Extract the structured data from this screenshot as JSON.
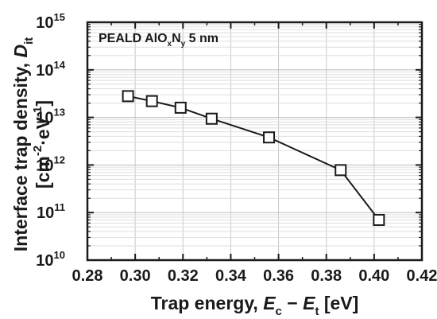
{
  "chart_data": {
    "type": "scatter",
    "annotation": {
      "parts": [
        {
          "t": "PEALD AlO",
          "s": "n"
        },
        {
          "t": "x",
          "s": "sub"
        },
        {
          "t": "N",
          "s": "n"
        },
        {
          "t": "y",
          "s": "sub"
        },
        {
          "t": " 5 nm",
          "s": "n"
        }
      ]
    },
    "xlabel": {
      "parts": [
        {
          "t": "Trap energy, ",
          "s": "n"
        },
        {
          "t": "E",
          "s": "i"
        },
        {
          "t": "c",
          "s": "sub"
        },
        {
          "t": " − ",
          "s": "n"
        },
        {
          "t": "E",
          "s": "i"
        },
        {
          "t": "t",
          "s": "sub"
        },
        {
          "t": " [eV]",
          "s": "n"
        }
      ]
    },
    "ylabel_line1": {
      "parts": [
        {
          "t": "Interface trap density, ",
          "s": "n"
        },
        {
          "t": "D",
          "s": "i"
        },
        {
          "t": "it",
          "s": "sub"
        }
      ]
    },
    "ylabel_line2": {
      "parts": [
        {
          "t": "[cm",
          "s": "n"
        },
        {
          "t": "-2",
          "s": "sup"
        },
        {
          "t": "·eV",
          "s": "n"
        },
        {
          "t": "-1",
          "s": "sup"
        },
        {
          "t": "]",
          "s": "n"
        }
      ]
    },
    "xlim": [
      0.28,
      0.42
    ],
    "ylim": [
      10000000000.0,
      1000000000000000.0
    ],
    "yscale": "log",
    "grid": true,
    "x_ticks": [
      "0.28",
      "0.30",
      "0.32",
      "0.34",
      "0.36",
      "0.38",
      "0.40",
      "0.42"
    ],
    "y_ticks": [
      {
        "base": "10",
        "exp": "10"
      },
      {
        "base": "10",
        "exp": "11"
      },
      {
        "base": "10",
        "exp": "12"
      },
      {
        "base": "10",
        "exp": "13"
      },
      {
        "base": "10",
        "exp": "14"
      },
      {
        "base": "10",
        "exp": "15"
      }
    ],
    "series": [
      {
        "marker": "open-square",
        "line": true,
        "x": [
          0.297,
          0.307,
          0.319,
          0.332,
          0.356,
          0.386,
          0.402
        ],
        "y": [
          28000000000000.0,
          22000000000000.0,
          16000000000000.0,
          9400000000000.0,
          3800000000000.0,
          780000000000.0,
          70000000000.0
        ]
      }
    ]
  }
}
